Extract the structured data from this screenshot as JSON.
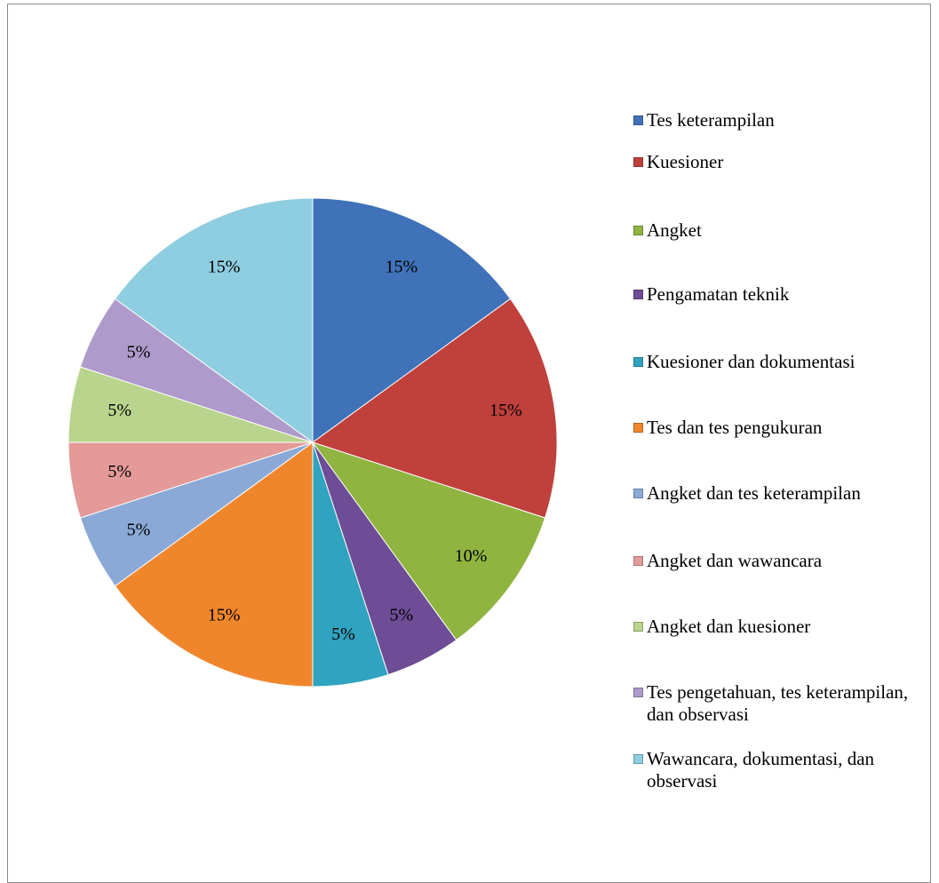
{
  "chart_data": {
    "type": "pie",
    "categories": [
      "Tes keterampilan",
      "Kuesioner",
      "Angket",
      "Pengamatan teknik",
      "Kuesioner dan dokumentasi",
      "Tes dan tes pengukuran",
      "Angket dan tes keterampilan",
      "Angket dan wawancara",
      "Angket dan kuesioner",
      "Tes pengetahuan, tes keterampilan, dan observasi",
      "Wawancara, dokumentasi, dan observasi"
    ],
    "values": [
      15,
      15,
      10,
      5,
      5,
      15,
      5,
      5,
      5,
      5,
      15
    ],
    "value_labels": [
      "15%",
      "15%",
      "10%",
      "5%",
      "5%",
      "15%",
      "5%",
      "5%",
      "5%",
      "5%",
      "15%"
    ],
    "colors": [
      "#3f72b8",
      "#c0403c",
      "#8fb440",
      "#6e4c96",
      "#2fa3c0",
      "#f0862c",
      "#8aa9d6",
      "#e39a98",
      "#b9d48c",
      "#ae9bcb",
      "#8fcde0"
    ],
    "legend": "right"
  }
}
